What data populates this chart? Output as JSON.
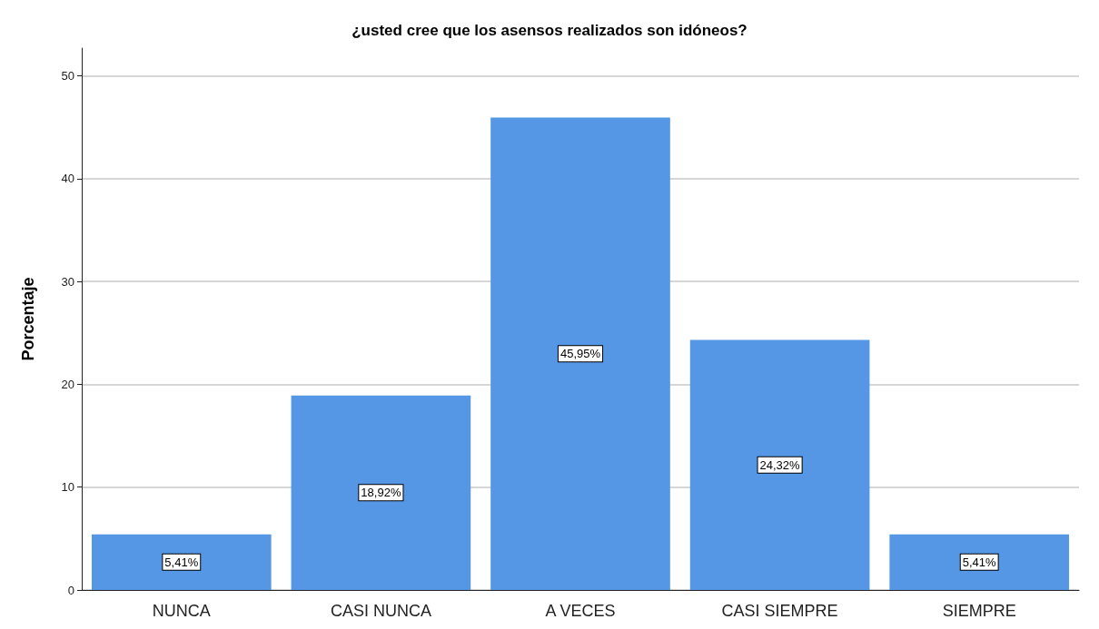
{
  "chart_data": {
    "type": "bar",
    "title": "¿usted cree que los asensos realizados son idóneos?",
    "ylabel": "Porcentaje",
    "categories": [
      "NUNCA",
      "CASI NUNCA",
      "A VECES",
      "CASI SIEMPRE",
      "SIEMPRE"
    ],
    "values": [
      5.41,
      18.92,
      45.95,
      24.32,
      5.41
    ],
    "value_labels": [
      "5,41%",
      "18,92%",
      "45,95%",
      "24,32%",
      "5,41%"
    ],
    "color": "#5596e5",
    "ylim": [
      0,
      52.7
    ],
    "yticks": [
      0,
      10,
      20,
      30,
      40,
      50
    ],
    "grid": "y"
  }
}
